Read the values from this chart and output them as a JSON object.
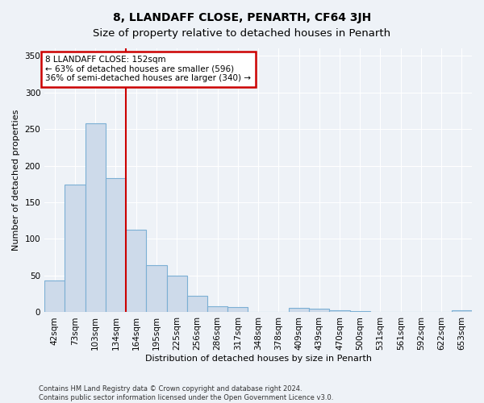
{
  "title": "8, LLANDAFF CLOSE, PENARTH, CF64 3JH",
  "subtitle": "Size of property relative to detached houses in Penarth",
  "xlabel": "Distribution of detached houses by size in Penarth",
  "ylabel": "Number of detached properties",
  "categories": [
    "42sqm",
    "73sqm",
    "103sqm",
    "134sqm",
    "164sqm",
    "195sqm",
    "225sqm",
    "256sqm",
    "286sqm",
    "317sqm",
    "348sqm",
    "378sqm",
    "409sqm",
    "439sqm",
    "470sqm",
    "500sqm",
    "531sqm",
    "561sqm",
    "592sqm",
    "622sqm",
    "653sqm"
  ],
  "values": [
    43,
    174,
    258,
    183,
    113,
    64,
    50,
    23,
    8,
    7,
    1,
    1,
    6,
    5,
    3,
    2,
    1,
    0,
    1,
    0,
    3
  ],
  "bar_color": "#cddaea",
  "bar_edge_color": "#7bafd4",
  "vline_index": 3.5,
  "annotation_line1": "8 LLANDAFF CLOSE: 152sqm",
  "annotation_line2": "← 63% of detached houses are smaller (596)",
  "annotation_line3": "36% of semi-detached houses are larger (340) →",
  "annotation_box_color": "#cc0000",
  "ylim": [
    0,
    360
  ],
  "yticks": [
    0,
    50,
    100,
    150,
    200,
    250,
    300,
    350
  ],
  "footnote1": "Contains HM Land Registry data © Crown copyright and database right 2024.",
  "footnote2": "Contains public sector information licensed under the Open Government Licence v3.0.",
  "background_color": "#eef2f7",
  "plot_background": "#eef2f7",
  "grid_color": "#ffffff",
  "title_fontsize": 10,
  "axis_fontsize": 8,
  "tick_fontsize": 7.5
}
